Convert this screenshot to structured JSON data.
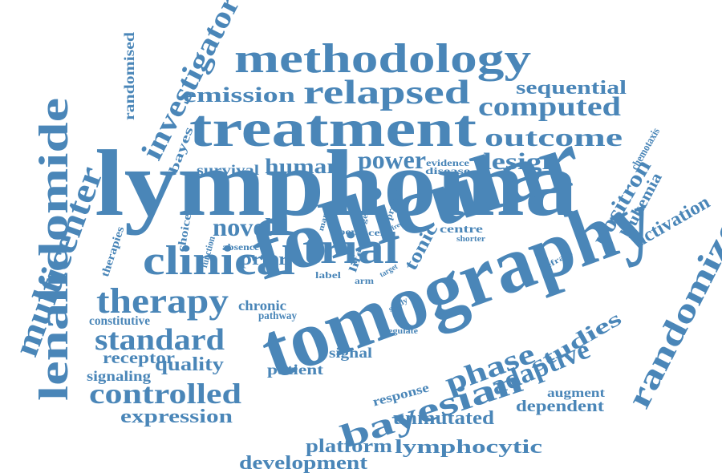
{
  "word_color": "#4a86b8",
  "background": "#ffffff",
  "words": [
    "lymphoma",
    "follicular",
    "tomography",
    "treatment",
    "methodology",
    "lenalidomide",
    "clinical",
    "trial",
    "therapy",
    "relapsed",
    "multicenter",
    "randomized",
    "standard",
    "controlled",
    "bayesian",
    "adaptive",
    "phase",
    "positron",
    "outcome",
    "computed",
    "emission",
    "investigator",
    "design",
    "power",
    "novel",
    "human",
    "survival",
    "quality",
    "expression",
    "unmutated",
    "lymphocytic",
    "platform",
    "development",
    "sequential",
    "activation",
    "leukemia",
    "chemotaxis",
    "studies",
    "receptor",
    "signaling",
    "constitutive",
    "dependent",
    "augment",
    "response",
    "signal",
    "patient",
    "chronic",
    "pathway",
    "prior",
    "tonic",
    "randomised",
    "bayes",
    "therapies",
    "choice",
    "function",
    "absence",
    "many",
    "agent",
    "present",
    "evidence",
    "disease",
    "open",
    "cell",
    "free",
    "centre",
    "life",
    "label",
    "arm",
    "target",
    "study",
    "shorter",
    "refract",
    "regulate"
  ]
}
